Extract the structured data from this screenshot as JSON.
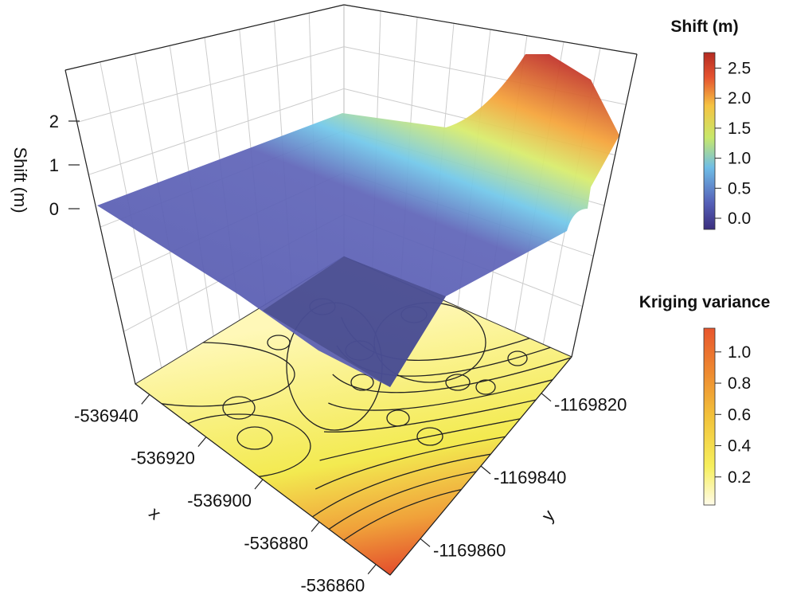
{
  "chart_data": {
    "type": "surface3d",
    "z_axis": {
      "label": "Shift (m)",
      "ticks": [
        0,
        1,
        2
      ]
    },
    "x_axis": {
      "label": "x",
      "ticks": [
        -536940,
        -536920,
        -536900,
        -536880,
        -536860
      ]
    },
    "y_axis": {
      "label": "y",
      "ticks": [
        -1169820,
        -1169840,
        -1169860
      ]
    },
    "surface": {
      "name": "Shift (m)",
      "corner_values": {
        "left": 0.0,
        "back": 0.0,
        "front": 0.0,
        "right_top": 2.8,
        "right_edge": 1.5
      },
      "peak": 2.8
    },
    "floor": {
      "name": "Kriging variance",
      "contours": true,
      "max_corner": "front"
    },
    "legends": [
      {
        "title": "Shift (m)",
        "ticks": [
          "2.5",
          "2.0",
          "1.5",
          "1.0",
          "0.5",
          "0.0"
        ],
        "colors": [
          "#3b2e7e",
          "#5560b8",
          "#6fbde6",
          "#c8e86a",
          "#f5c342",
          "#e5532f",
          "#b42b22"
        ]
      },
      {
        "title": "Kriging variance",
        "ticks": [
          "1.0",
          "0.8",
          "0.6",
          "0.4",
          "0.2"
        ],
        "colors": [
          "#fffbe0",
          "#f6ef5c",
          "#f2c23a",
          "#ee8a30",
          "#e8562d"
        ]
      }
    ],
    "grid": true
  }
}
